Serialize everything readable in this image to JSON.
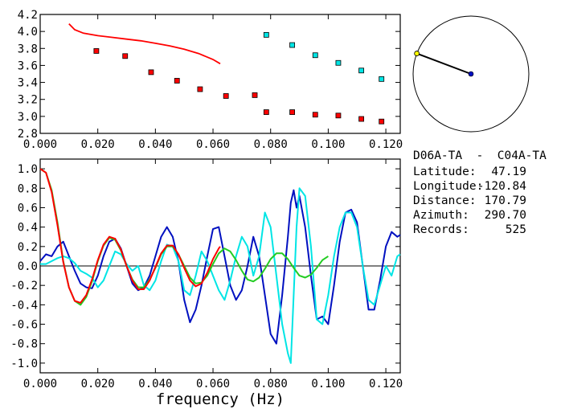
{
  "info": {
    "station_pair": "D06A-TA  -  C04A-TA",
    "lines": [
      {
        "label": "Latitude:",
        "value": "47.19"
      },
      {
        "label": "Longitude:",
        "value": "-120.84"
      },
      {
        "label": "Distance:",
        "value": "170.79"
      },
      {
        "label": "Azimuth:",
        "value": "290.70"
      },
      {
        "label": "Records:",
        "value": "525"
      }
    ]
  },
  "chart_data": [
    {
      "type": "scatter",
      "name": "dispersion",
      "xlim": [
        0.0,
        0.125
      ],
      "ylim": [
        2.8,
        4.2
      ],
      "x_ticks": [
        "0.000",
        "0.020",
        "0.040",
        "0.060",
        "0.080",
        "0.100",
        "0.120"
      ],
      "y_ticks": [
        "2.8",
        "3.0",
        "3.2",
        "3.4",
        "3.6",
        "3.8",
        "4.0",
        "4.2"
      ],
      "xlabel": "",
      "ylabel": "",
      "series": [
        {
          "color": "#ff0000",
          "kind": "line",
          "x": [
            0.01,
            0.012,
            0.015,
            0.02,
            0.025,
            0.03,
            0.035,
            0.04,
            0.045,
            0.05,
            0.055,
            0.06,
            0.0625
          ],
          "y": [
            4.09,
            4.02,
            3.98,
            3.95,
            3.93,
            3.91,
            3.89,
            3.86,
            3.83,
            3.79,
            3.74,
            3.67,
            3.62
          ]
        },
        {
          "color": "#ff0000",
          "kind": "points",
          "x": [
            0.0195,
            0.0295,
            0.0385,
            0.0475,
            0.0555,
            0.0645,
            0.0745,
            0.0785,
            0.0875,
            0.0955,
            0.1035,
            0.1115,
            0.1185
          ],
          "y": [
            3.77,
            3.71,
            3.52,
            3.42,
            3.32,
            3.24,
            3.25,
            3.05,
            3.05,
            3.02,
            3.01,
            2.97,
            2.94
          ]
        },
        {
          "color": "#00e5e5",
          "kind": "points",
          "x": [
            0.0785,
            0.0875,
            0.0955,
            0.1035,
            0.1115,
            0.1185
          ],
          "y": [
            3.96,
            3.84,
            3.72,
            3.63,
            3.54,
            3.44
          ]
        }
      ]
    },
    {
      "type": "line",
      "name": "coherency",
      "xlim": [
        0.0,
        0.125
      ],
      "ylim": [
        -1.1,
        1.1
      ],
      "x_ticks": [
        "0.000",
        "0.020",
        "0.040",
        "0.060",
        "0.080",
        "0.100",
        "0.120"
      ],
      "y_ticks": [
        "-1.0",
        "-0.8",
        "-0.6",
        "-0.4",
        "-0.2",
        "0.0",
        "0.2",
        "0.4",
        "0.6",
        "0.8",
        "1.0"
      ],
      "xlabel": "frequency (Hz)",
      "ylabel": "",
      "zero_line": true,
      "series": [
        {
          "color": "#0010c0",
          "x": [
            0.0,
            0.002,
            0.004,
            0.006,
            0.008,
            0.01,
            0.012,
            0.014,
            0.016,
            0.018,
            0.02,
            0.022,
            0.024,
            0.026,
            0.028,
            0.03,
            0.032,
            0.034,
            0.036,
            0.038,
            0.04,
            0.042,
            0.044,
            0.046,
            0.048,
            0.05,
            0.052,
            0.054,
            0.056,
            0.058,
            0.06,
            0.062,
            0.064,
            0.066,
            0.068,
            0.07,
            0.072,
            0.074,
            0.076,
            0.078,
            0.08,
            0.082,
            0.084,
            0.086,
            0.087,
            0.088,
            0.089,
            0.09,
            0.092,
            0.094,
            0.096,
            0.098,
            0.1,
            0.102,
            0.104,
            0.106,
            0.108,
            0.11,
            0.112,
            0.114,
            0.116,
            0.118,
            0.12,
            0.122,
            0.124,
            0.125
          ],
          "y": [
            0.05,
            0.12,
            0.1,
            0.2,
            0.25,
            0.1,
            -0.05,
            -0.18,
            -0.22,
            -0.23,
            -0.1,
            0.1,
            0.25,
            0.28,
            0.18,
            0.0,
            -0.18,
            -0.25,
            -0.22,
            -0.1,
            0.1,
            0.3,
            0.4,
            0.3,
            0.05,
            -0.35,
            -0.58,
            -0.45,
            -0.2,
            0.1,
            0.38,
            0.4,
            0.1,
            -0.2,
            -0.35,
            -0.25,
            0.0,
            0.3,
            0.1,
            -0.3,
            -0.7,
            -0.8,
            -0.3,
            0.3,
            0.65,
            0.78,
            0.6,
            0.72,
            0.4,
            -0.1,
            -0.55,
            -0.52,
            -0.6,
            -0.2,
            0.25,
            0.55,
            0.58,
            0.45,
            0.0,
            -0.45,
            -0.45,
            -0.15,
            0.2,
            0.35,
            0.3,
            0.32
          ]
        },
        {
          "color": "#00e5e5",
          "x": [
            0.0,
            0.002,
            0.004,
            0.006,
            0.008,
            0.01,
            0.012,
            0.014,
            0.016,
            0.018,
            0.02,
            0.022,
            0.024,
            0.026,
            0.028,
            0.03,
            0.032,
            0.034,
            0.036,
            0.038,
            0.04,
            0.042,
            0.044,
            0.046,
            0.048,
            0.05,
            0.052,
            0.054,
            0.056,
            0.058,
            0.06,
            0.062,
            0.064,
            0.066,
            0.068,
            0.07,
            0.072,
            0.074,
            0.076,
            0.078,
            0.08,
            0.082,
            0.084,
            0.086,
            0.087,
            0.088,
            0.089,
            0.09,
            0.092,
            0.094,
            0.096,
            0.098,
            0.1,
            0.102,
            0.104,
            0.106,
            0.108,
            0.11,
            0.112,
            0.114,
            0.116,
            0.118,
            0.12,
            0.122,
            0.124,
            0.125
          ],
          "y": [
            0.02,
            0.02,
            0.05,
            0.08,
            0.1,
            0.08,
            0.03,
            -0.05,
            -0.08,
            -0.12,
            -0.22,
            -0.15,
            0.0,
            0.15,
            0.12,
            0.02,
            -0.05,
            0.0,
            -0.2,
            -0.25,
            -0.15,
            0.05,
            0.22,
            0.2,
            0.05,
            -0.25,
            -0.3,
            -0.1,
            0.15,
            0.05,
            -0.1,
            -0.25,
            -0.35,
            -0.15,
            0.1,
            0.3,
            0.2,
            -0.1,
            0.1,
            0.55,
            0.4,
            -0.1,
            -0.6,
            -0.9,
            -1.0,
            -0.3,
            0.4,
            0.8,
            0.72,
            0.2,
            -0.55,
            -0.6,
            -0.3,
            0.1,
            0.4,
            0.55,
            0.55,
            0.4,
            0.0,
            -0.35,
            -0.4,
            -0.2,
            0.0,
            -0.1,
            0.1,
            0.12
          ]
        },
        {
          "color": "#22cc22",
          "x": [
            0.0,
            0.002,
            0.004,
            0.006,
            0.008,
            0.01,
            0.012,
            0.014,
            0.016,
            0.018,
            0.02,
            0.022,
            0.024,
            0.026,
            0.028,
            0.03,
            0.032,
            0.034,
            0.036,
            0.038,
            0.04,
            0.042,
            0.044,
            0.046,
            0.048,
            0.05,
            0.052,
            0.054,
            0.056,
            0.058,
            0.06,
            0.062,
            0.064,
            0.066,
            0.068,
            0.07,
            0.072,
            0.074,
            0.076,
            0.078,
            0.08,
            0.082,
            0.084,
            0.086,
            0.088,
            0.09,
            0.092,
            0.094,
            0.096,
            0.098,
            0.1
          ],
          "y": [
            1.0,
            0.96,
            0.78,
            0.45,
            0.05,
            -0.22,
            -0.36,
            -0.4,
            -0.32,
            -0.16,
            0.05,
            0.21,
            0.29,
            0.27,
            0.16,
            0.0,
            -0.14,
            -0.22,
            -0.22,
            -0.14,
            -0.02,
            0.12,
            0.2,
            0.2,
            0.12,
            0.0,
            -0.12,
            -0.18,
            -0.17,
            -0.1,
            0.02,
            0.13,
            0.18,
            0.15,
            0.06,
            -0.05,
            -0.14,
            -0.16,
            -0.12,
            -0.03,
            0.07,
            0.13,
            0.13,
            0.07,
            -0.02,
            -0.1,
            -0.12,
            -0.09,
            -0.02,
            0.06,
            0.1
          ]
        },
        {
          "color": "#ff0000",
          "x": [
            0.0,
            0.002,
            0.004,
            0.006,
            0.008,
            0.01,
            0.012,
            0.014,
            0.016,
            0.018,
            0.02,
            0.022,
            0.024,
            0.026,
            0.028,
            0.03,
            0.032,
            0.034,
            0.036,
            0.038,
            0.04,
            0.042,
            0.044,
            0.046,
            0.048,
            0.05,
            0.052,
            0.054,
            0.056,
            0.058,
            0.06,
            0.062,
            0.0625
          ],
          "y": [
            1.0,
            0.96,
            0.76,
            0.42,
            0.04,
            -0.22,
            -0.36,
            -0.38,
            -0.3,
            -0.14,
            0.06,
            0.22,
            0.3,
            0.28,
            0.17,
            0.0,
            -0.15,
            -0.24,
            -0.24,
            -0.15,
            -0.01,
            0.13,
            0.21,
            0.21,
            0.12,
            -0.02,
            -0.15,
            -0.21,
            -0.18,
            -0.07,
            0.07,
            0.18,
            0.2
          ]
        }
      ]
    },
    {
      "type": "polar",
      "name": "azimuth-compass",
      "azimuth_deg": 290.7,
      "line_color": "#000000",
      "center_color": "#0010c0",
      "endpoint_color": "#ffff00"
    }
  ]
}
